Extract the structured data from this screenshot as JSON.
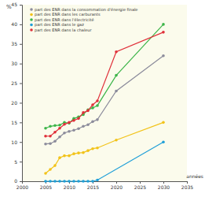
{
  "chart_data": {
    "type": "line",
    "y_label": "%",
    "x_label": "années",
    "x": [
      2005,
      2006,
      2007,
      2008,
      2009,
      2010,
      2011,
      2012,
      2013,
      2014,
      2015,
      2016,
      2020,
      2030
    ],
    "xlim": [
      2000,
      2035
    ],
    "xticks": [
      2000,
      2005,
      2010,
      2015,
      2020,
      2025,
      2030,
      2035
    ],
    "ylim": [
      0,
      45
    ],
    "yticks": [
      0,
      5,
      10,
      15,
      20,
      25,
      30,
      35,
      40,
      45
    ],
    "grid": false,
    "legend": "upper left",
    "marker": "circle",
    "series": [
      {
        "name": "part des ENR dans la consommation d'énergie finale",
        "color": "#8c8c9c",
        "values": [
          9.5,
          9.6,
          10.2,
          11.3,
          12.3,
          12.7,
          13.0,
          13.4,
          14.0,
          14.4,
          15.2,
          15.7,
          23,
          32
        ]
      },
      {
        "name": "part des ENR dans les carburants",
        "color": "#f2c31a",
        "values": [
          2.0,
          3.0,
          4.0,
          6.0,
          6.5,
          6.5,
          7.0,
          7.2,
          7.3,
          7.8,
          8.3,
          8.5,
          10.5,
          15
        ]
      },
      {
        "name": "part des ENR dans l'électricité",
        "color": "#3db54a",
        "values": [
          13.5,
          14.0,
          14.2,
          14.3,
          15.0,
          14.8,
          16.0,
          16.4,
          17.0,
          18.2,
          18.7,
          19.3,
          27,
          40
        ]
      },
      {
        "name": "part des ENR dans le gaz",
        "color": "#1f9fd8",
        "x": [
          2005,
          2006,
          2007,
          2008,
          2009,
          2010,
          2011,
          2012,
          2013,
          2014,
          2015,
          2016,
          2030
        ],
        "values": [
          0,
          0,
          0,
          0,
          0,
          0,
          0,
          0,
          0,
          0,
          0,
          0.3,
          10
        ]
      },
      {
        "name": "part des ENR dans la chaleur",
        "color": "#e0303a",
        "values": [
          11.5,
          11.5,
          12.5,
          13.5,
          14.5,
          15.0,
          15.5,
          16.0,
          17.5,
          18.0,
          19.5,
          20.5,
          33,
          38
        ]
      }
    ]
  }
}
